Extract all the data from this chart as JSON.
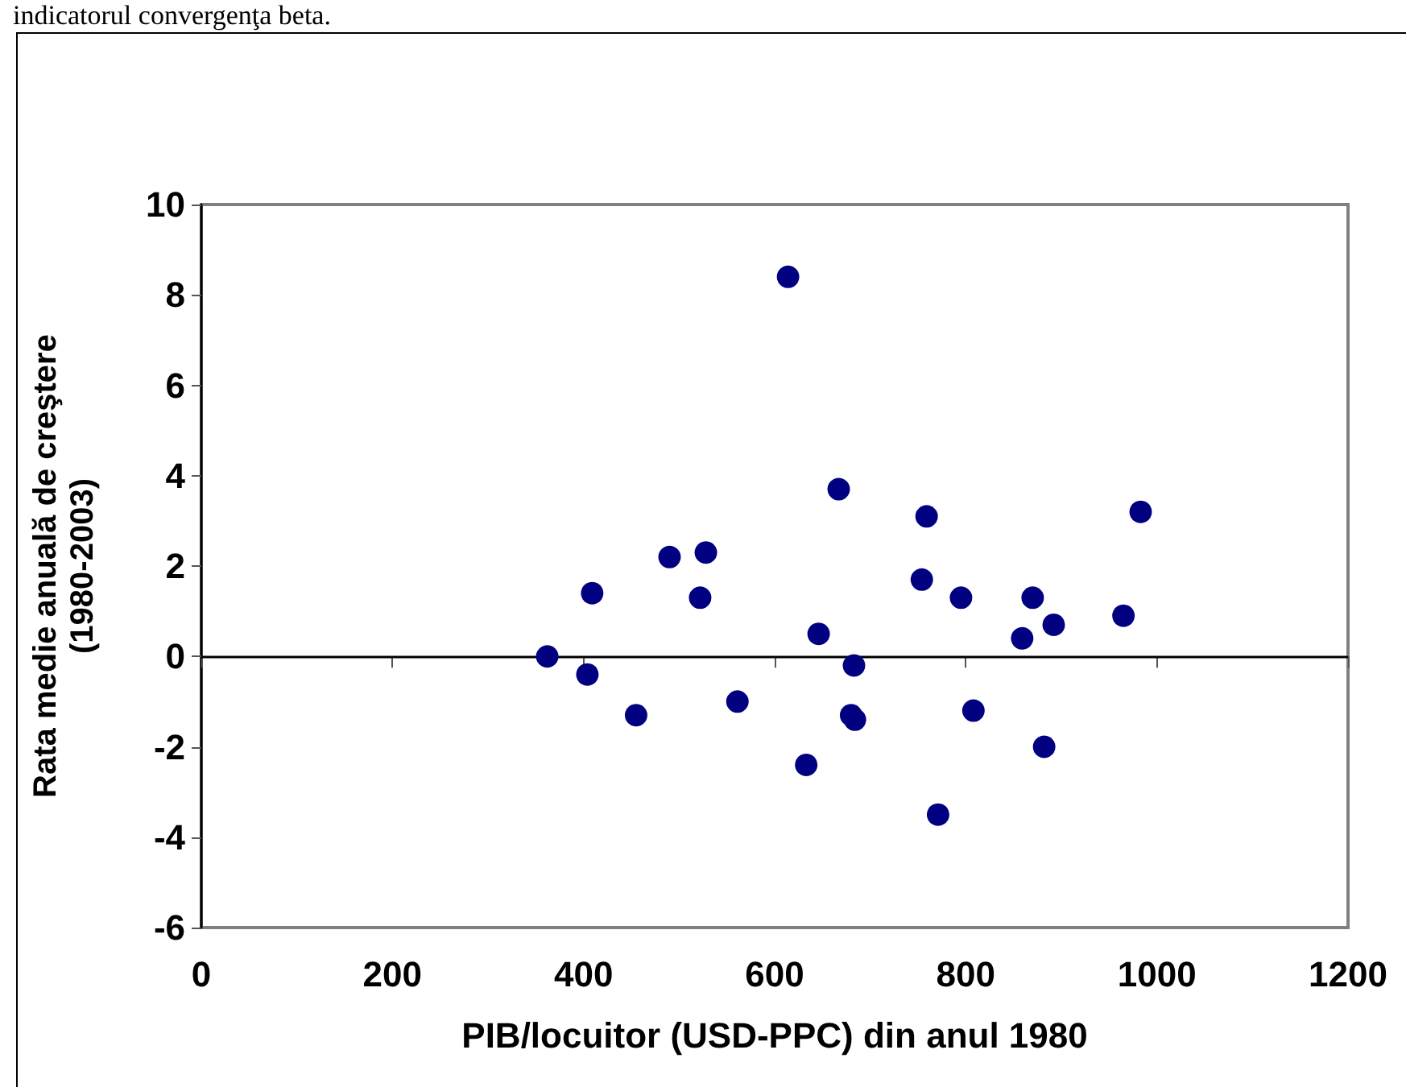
{
  "chart_data": {
    "type": "scatter",
    "xlabel": "PIB/locuitor (USD-PPC) din anul 1980",
    "ylabel": "Rata medie anuală de creştere\n(1980-2003)",
    "annotations": [
      "indicatorul convergenţa beta."
    ],
    "x": [
      362,
      404,
      455,
      409,
      490,
      528,
      522,
      561,
      614,
      633,
      646,
      667,
      683,
      680,
      684,
      759,
      754,
      771,
      795,
      808,
      859,
      870,
      892,
      882,
      965,
      983
    ],
    "values": [
      0,
      -0.4,
      -1.3,
      1.4,
      2.2,
      2.3,
      1.3,
      -1.0,
      8.4,
      -2.4,
      0.5,
      3.7,
      -0.2,
      -1.3,
      -1.4,
      3.1,
      1.7,
      -3.5,
      1.3,
      -1.2,
      0.4,
      1.3,
      0.7,
      -2.0,
      0.9,
      3.2
    ],
    "color": "#000080",
    "marker": "circle",
    "xlim": [
      0,
      1200
    ],
    "xticks": [
      0,
      200,
      400,
      600,
      800,
      1000,
      1200
    ],
    "ylim": [
      -6,
      10
    ],
    "yticks": [
      -6,
      -4,
      -2,
      0,
      2,
      4,
      6,
      8,
      10
    ],
    "ref_lines": [
      {
        "axis": "y",
        "value": 0,
        "color": "#000000"
      }
    ],
    "grid": false
  }
}
